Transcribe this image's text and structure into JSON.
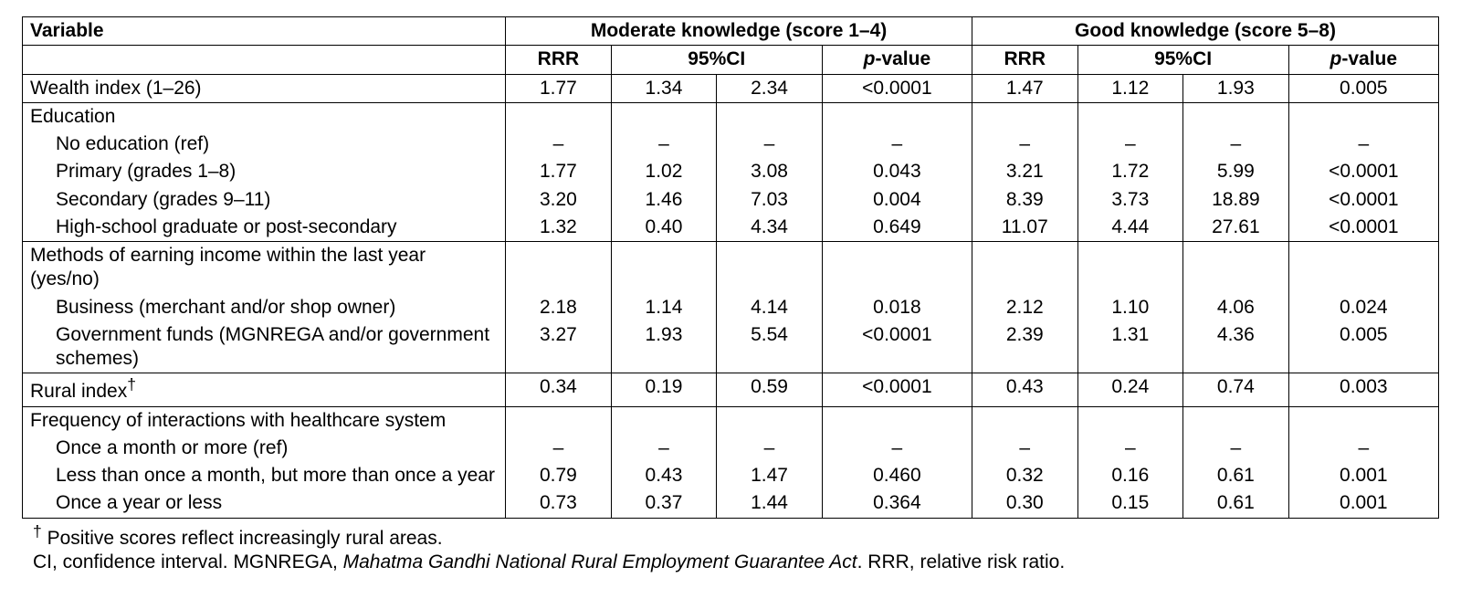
{
  "headers": {
    "variable": "Variable",
    "moderate": "Moderate knowledge (score 1–4)",
    "good": "Good knowledge (score 5–8)",
    "rrr": "RRR",
    "ci": "95%CI",
    "pvalue_html": "<span class=\"italic\">p</span>-value"
  },
  "rows": {
    "wealth": {
      "label": "Wealth index (1–26)",
      "m": {
        "rrr": "1.77",
        "ci_lo": "1.34",
        "ci_hi": "2.34",
        "p": "<0.0001"
      },
      "g": {
        "rrr": "1.47",
        "ci_lo": "1.12",
        "ci_hi": "1.93",
        "p": "0.005"
      }
    },
    "education": {
      "label": "Education",
      "sub": [
        {
          "label": "No education (ref)",
          "m": {
            "rrr": "–",
            "ci_lo": "–",
            "ci_hi": "–",
            "p": "–"
          },
          "g": {
            "rrr": "–",
            "ci_lo": "–",
            "ci_hi": "–",
            "p": "–"
          }
        },
        {
          "label": "Primary (grades 1–8)",
          "m": {
            "rrr": "1.77",
            "ci_lo": "1.02",
            "ci_hi": "3.08",
            "p": "0.043"
          },
          "g": {
            "rrr": "3.21",
            "ci_lo": "1.72",
            "ci_hi": "5.99",
            "p": "<0.0001"
          }
        },
        {
          "label": "Secondary (grades 9–11)",
          "m": {
            "rrr": "3.20",
            "ci_lo": "1.46",
            "ci_hi": "7.03",
            "p": "0.004"
          },
          "g": {
            "rrr": "8.39",
            "ci_lo": "3.73",
            "ci_hi": "18.89",
            "p": "<0.0001"
          }
        },
        {
          "label": "High-school graduate or post-secondary",
          "m": {
            "rrr": "1.32",
            "ci_lo": "0.40",
            "ci_hi": "4.34",
            "p": "0.649"
          },
          "g": {
            "rrr": "11.07",
            "ci_lo": "4.44",
            "ci_hi": "27.61",
            "p": "<0.0001"
          }
        }
      ]
    },
    "income": {
      "label": "Methods of earning income within the last year (yes/no)",
      "sub": [
        {
          "label": "Business (merchant and/or shop owner)",
          "m": {
            "rrr": "2.18",
            "ci_lo": "1.14",
            "ci_hi": "4.14",
            "p": "0.018"
          },
          "g": {
            "rrr": "2.12",
            "ci_lo": "1.10",
            "ci_hi": "4.06",
            "p": "0.024"
          }
        },
        {
          "label": "Government funds (MGNREGA and/or government schemes)",
          "m": {
            "rrr": "3.27",
            "ci_lo": "1.93",
            "ci_hi": "5.54",
            "p": "<0.0001"
          },
          "g": {
            "rrr": "2.39",
            "ci_lo": "1.31",
            "ci_hi": "4.36",
            "p": "0.005"
          }
        }
      ]
    },
    "rural": {
      "label_html": "Rural index<sup>†</sup>",
      "m": {
        "rrr": "0.34",
        "ci_lo": "0.19",
        "ci_hi": "0.59",
        "p": "<0.0001"
      },
      "g": {
        "rrr": "0.43",
        "ci_lo": "0.24",
        "ci_hi": "0.74",
        "p": "0.003"
      }
    },
    "healthcare": {
      "label": "Frequency of interactions with healthcare system",
      "sub": [
        {
          "label": "Once a month or more (ref)",
          "m": {
            "rrr": "–",
            "ci_lo": "–",
            "ci_hi": "–",
            "p": "–"
          },
          "g": {
            "rrr": "–",
            "ci_lo": "–",
            "ci_hi": "–",
            "p": "–"
          }
        },
        {
          "label": "Less than once a month, but more than once a year",
          "m": {
            "rrr": "0.79",
            "ci_lo": "0.43",
            "ci_hi": "1.47",
            "p": "0.460"
          },
          "g": {
            "rrr": "0.32",
            "ci_lo": "0.16",
            "ci_hi": "0.61",
            "p": "0.001"
          }
        },
        {
          "label": "Once a year or less",
          "m": {
            "rrr": "0.73",
            "ci_lo": "0.37",
            "ci_hi": "1.44",
            "p": "0.364"
          },
          "g": {
            "rrr": "0.30",
            "ci_lo": "0.15",
            "ci_hi": "0.61",
            "p": "0.001"
          }
        }
      ]
    }
  },
  "footnotes": {
    "f1_html": "<sup>†</sup> Positive scores reflect increasingly rural areas.",
    "f2_html": "CI, confidence interval. MGNREGA, <span class=\"italic\">Mahatma Gandhi National Rural Employment Guarantee Act</span>. RRR, relative risk ratio."
  },
  "style": {
    "font_family": "Arial",
    "font_size_pt": 16,
    "text_color": "#000000",
    "background_color": "#ffffff",
    "border_color": "#000000"
  }
}
